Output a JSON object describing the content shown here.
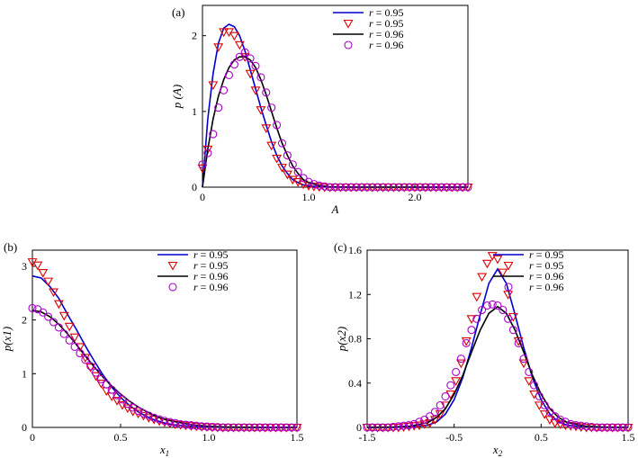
{
  "chart_data": [
    {
      "type": "line",
      "panel_label": "(a)",
      "xlabel": "A",
      "ylabel": "p (A)",
      "xlim": [
        0,
        2.5
      ],
      "ylim": [
        0,
        2.4
      ],
      "xticks": [
        0,
        1.0,
        2.0
      ],
      "xtick_labels": [
        "0",
        "1.0",
        "2.0"
      ],
      "yticks": [
        0,
        1,
        2
      ],
      "ytick_labels": [
        "0",
        "1",
        "2"
      ],
      "legend": [
        "r = 0.95",
        "r = 0.95",
        "r = 0.96",
        "r = 0.96"
      ],
      "legend_position": "top-right",
      "series": [
        {
          "name": "r = 0.95",
          "style": "line",
          "color": "#0000cc",
          "x": [
            0,
            0.05,
            0.1,
            0.15,
            0.2,
            0.25,
            0.3,
            0.35,
            0.4,
            0.45,
            0.5,
            0.55,
            0.6,
            0.65,
            0.7,
            0.75,
            0.8,
            0.85,
            0.9,
            0.95,
            1.0,
            1.1,
            1.2,
            1.4,
            1.6,
            2.0,
            2.5
          ],
          "y": [
            0,
            0.9,
            1.5,
            1.9,
            2.1,
            2.15,
            2.12,
            2.0,
            1.8,
            1.55,
            1.3,
            1.05,
            0.82,
            0.6,
            0.42,
            0.28,
            0.18,
            0.1,
            0.06,
            0.03,
            0.015,
            0.005,
            0,
            0,
            0,
            0,
            0
          ]
        },
        {
          "name": "r = 0.95",
          "style": "marker-triangle",
          "color": "#dd0000",
          "x": [
            0,
            0.05,
            0.1,
            0.15,
            0.2,
            0.25,
            0.3,
            0.35,
            0.4,
            0.45,
            0.5,
            0.55,
            0.6,
            0.65,
            0.7,
            0.75,
            0.8,
            0.85,
            0.9,
            0.95,
            1.0,
            1.05,
            1.1,
            1.15,
            1.2,
            1.25,
            1.3,
            1.35,
            1.4,
            1.45,
            1.5,
            1.55,
            1.6,
            1.65,
            1.7,
            1.75,
            1.8,
            1.85,
            1.9,
            1.95,
            2.0,
            2.05,
            2.1,
            2.15,
            2.2,
            2.25,
            2.3,
            2.35,
            2.4,
            2.45,
            2.5
          ],
          "y": [
            0.25,
            0.5,
            1.35,
            1.85,
            2.05,
            2.05,
            2.0,
            1.88,
            1.72,
            1.5,
            1.28,
            1.02,
            0.78,
            0.55,
            0.38,
            0.26,
            0.17,
            0.1,
            0.07,
            0.04,
            0.02,
            0.01,
            0.005,
            0,
            0,
            0,
            0,
            0,
            0,
            0,
            0,
            0,
            0,
            0,
            0,
            0,
            0,
            0,
            0,
            0,
            0,
            0,
            0,
            0,
            0,
            0,
            0,
            0,
            0,
            0,
            0
          ]
        },
        {
          "name": "r = 0.96",
          "style": "line",
          "color": "#000000",
          "x": [
            0,
            0.05,
            0.1,
            0.15,
            0.2,
            0.25,
            0.3,
            0.35,
            0.4,
            0.45,
            0.5,
            0.55,
            0.6,
            0.65,
            0.7,
            0.75,
            0.8,
            0.85,
            0.9,
            0.95,
            1.0,
            1.1,
            1.2,
            1.4,
            1.6,
            2.0,
            2.5
          ],
          "y": [
            0,
            0.5,
            0.9,
            1.2,
            1.42,
            1.58,
            1.68,
            1.72,
            1.72,
            1.68,
            1.58,
            1.42,
            1.22,
            1.0,
            0.78,
            0.58,
            0.42,
            0.28,
            0.18,
            0.1,
            0.06,
            0.02,
            0.005,
            0,
            0,
            0,
            0
          ]
        },
        {
          "name": "r = 0.96",
          "style": "marker-circle",
          "color": "#aa00cc",
          "x": [
            0,
            0.05,
            0.1,
            0.15,
            0.2,
            0.25,
            0.3,
            0.35,
            0.4,
            0.45,
            0.5,
            0.55,
            0.6,
            0.65,
            0.7,
            0.75,
            0.8,
            0.85,
            0.9,
            0.95,
            1.0,
            1.05,
            1.1,
            1.15,
            1.2,
            1.25,
            1.3,
            1.35,
            1.4,
            1.45,
            1.5,
            1.55,
            1.6,
            1.65,
            1.7,
            1.75,
            1.8,
            1.85,
            1.9,
            1.95,
            2.0,
            2.05,
            2.1,
            2.15,
            2.2,
            2.25,
            2.3,
            2.35,
            2.4,
            2.45,
            2.5
          ],
          "y": [
            0.3,
            0.45,
            0.7,
            1.05,
            1.28,
            1.48,
            1.62,
            1.72,
            1.78,
            1.7,
            1.6,
            1.45,
            1.25,
            1.05,
            0.82,
            0.58,
            0.42,
            0.3,
            0.2,
            0.12,
            0.07,
            0.04,
            0.02,
            0.01,
            0,
            0,
            0,
            0,
            0,
            0,
            0,
            0,
            0,
            0,
            0,
            0,
            0,
            0,
            0,
            0,
            0,
            0,
            0,
            0,
            0,
            0,
            0,
            0,
            0,
            0,
            0
          ]
        }
      ]
    },
    {
      "type": "line",
      "panel_label": "(b)",
      "xlabel": "x1",
      "ylabel": "p(x1)",
      "xlim": [
        0,
        1.5
      ],
      "ylim": [
        0,
        3.3
      ],
      "xticks": [
        0,
        0.5,
        1.0,
        1.5
      ],
      "xtick_labels": [
        "0",
        "0.5",
        "1.0",
        "1.5"
      ],
      "yticks": [
        0,
        1,
        2,
        3
      ],
      "ytick_labels": [
        "0",
        "1",
        "2",
        "3"
      ],
      "legend": [
        "r = 0.95",
        "r = 0.95",
        "r = 0.96",
        "r = 0.96"
      ],
      "legend_position": "top-right",
      "series": [
        {
          "name": "r = 0.95",
          "style": "line",
          "color": "#0000cc",
          "x": [
            0,
            0.05,
            0.1,
            0.15,
            0.2,
            0.25,
            0.3,
            0.35,
            0.4,
            0.45,
            0.5,
            0.55,
            0.6,
            0.65,
            0.7,
            0.75,
            0.8,
            0.9,
            1.0,
            1.1,
            1.2,
            1.3,
            1.4,
            1.5
          ],
          "y": [
            2.82,
            2.78,
            2.62,
            2.4,
            2.1,
            1.82,
            1.52,
            1.24,
            0.98,
            0.75,
            0.56,
            0.41,
            0.29,
            0.2,
            0.13,
            0.08,
            0.05,
            0.02,
            0.007,
            0.002,
            0,
            0,
            0,
            0
          ]
        },
        {
          "name": "r = 0.95",
          "style": "marker-triangle",
          "color": "#dd0000",
          "x": [
            0,
            0.03,
            0.06,
            0.09,
            0.12,
            0.15,
            0.18,
            0.21,
            0.24,
            0.27,
            0.3,
            0.33,
            0.36,
            0.39,
            0.42,
            0.45,
            0.48,
            0.51,
            0.54,
            0.57,
            0.6,
            0.63,
            0.66,
            0.69,
            0.72,
            0.75,
            0.78,
            0.81,
            0.84,
            0.87,
            0.9,
            0.93,
            0.96,
            0.99,
            1.02,
            1.05,
            1.08,
            1.11,
            1.14,
            1.17,
            1.2,
            1.23,
            1.26,
            1.29,
            1.32,
            1.35,
            1.38,
            1.41,
            1.44,
            1.47,
            1.5
          ],
          "y": [
            3.08,
            3.02,
            2.88,
            2.72,
            2.52,
            2.3,
            2.08,
            1.88,
            1.68,
            1.5,
            1.3,
            1.12,
            0.96,
            0.82,
            0.68,
            0.58,
            0.5,
            0.42,
            0.36,
            0.3,
            0.26,
            0.22,
            0.18,
            0.15,
            0.12,
            0.1,
            0.08,
            0.06,
            0.05,
            0.04,
            0.03,
            0.02,
            0.015,
            0.01,
            0.005,
            0,
            0,
            0,
            0,
            0,
            0,
            0,
            0,
            0,
            0,
            0,
            0,
            0,
            0,
            0,
            0
          ]
        },
        {
          "name": "r = 0.96",
          "style": "line",
          "color": "#000000",
          "x": [
            0,
            0.05,
            0.1,
            0.15,
            0.2,
            0.25,
            0.3,
            0.35,
            0.4,
            0.45,
            0.5,
            0.55,
            0.6,
            0.65,
            0.7,
            0.75,
            0.8,
            0.9,
            1.0,
            1.1,
            1.2,
            1.3,
            1.4,
            1.5
          ],
          "y": [
            2.18,
            2.15,
            2.06,
            1.92,
            1.74,
            1.54,
            1.33,
            1.13,
            0.94,
            0.77,
            0.62,
            0.49,
            0.38,
            0.29,
            0.21,
            0.15,
            0.11,
            0.05,
            0.02,
            0.008,
            0.003,
            0,
            0,
            0
          ]
        },
        {
          "name": "r = 0.96",
          "style": "marker-circle",
          "color": "#aa00cc",
          "x": [
            0,
            0.03,
            0.06,
            0.09,
            0.12,
            0.15,
            0.18,
            0.21,
            0.24,
            0.27,
            0.3,
            0.33,
            0.36,
            0.39,
            0.42,
            0.45,
            0.48,
            0.51,
            0.54,
            0.57,
            0.6,
            0.63,
            0.66,
            0.69,
            0.72,
            0.75,
            0.78,
            0.81,
            0.84,
            0.87,
            0.9,
            0.93,
            0.96,
            0.99,
            1.02,
            1.05,
            1.08,
            1.11,
            1.14,
            1.17,
            1.2,
            1.23,
            1.26,
            1.29,
            1.32,
            1.35,
            1.38,
            1.41,
            1.44,
            1.47,
            1.5
          ],
          "y": [
            2.22,
            2.2,
            2.14,
            2.06,
            1.96,
            1.86,
            1.74,
            1.62,
            1.5,
            1.38,
            1.26,
            1.14,
            1.02,
            0.9,
            0.8,
            0.7,
            0.6,
            0.52,
            0.44,
            0.37,
            0.31,
            0.26,
            0.22,
            0.18,
            0.15,
            0.12,
            0.1,
            0.08,
            0.06,
            0.05,
            0.04,
            0.03,
            0.02,
            0.015,
            0.01,
            0.005,
            0,
            0,
            0,
            0,
            0,
            0,
            0,
            0,
            0,
            0,
            0,
            0,
            0,
            0,
            0
          ]
        }
      ]
    },
    {
      "type": "line",
      "panel_label": "(c)",
      "xlabel": "x2",
      "ylabel": "p(x2)",
      "xlim": [
        -1.5,
        1.5
      ],
      "ylim": [
        0,
        1.6
      ],
      "xticks": [
        -1.5,
        -0.5,
        0.5,
        1.5
      ],
      "xtick_labels": [
        "-1.5",
        "-0.5",
        "0.5",
        "1.5"
      ],
      "yticks": [
        0,
        0.4,
        0.8,
        1.2,
        1.6
      ],
      "ytick_labels": [
        "0",
        "0.4",
        "0.8",
        "1.2",
        "1.6"
      ],
      "legend": [
        "r = 0.95",
        "r = 0.95",
        "r = 0.96",
        "r = 0.96"
      ],
      "legend_position": "top-right",
      "series": [
        {
          "name": "r = 0.95",
          "style": "line",
          "color": "#0000cc",
          "x": [
            -1.5,
            -1.2,
            -1.0,
            -0.8,
            -0.7,
            -0.6,
            -0.5,
            -0.4,
            -0.3,
            -0.2,
            -0.1,
            0,
            0.1,
            0.2,
            0.3,
            0.4,
            0.5,
            0.6,
            0.7,
            0.8,
            1.0,
            1.2,
            1.5
          ],
          "y": [
            0,
            0.001,
            0.004,
            0.02,
            0.05,
            0.12,
            0.25,
            0.45,
            0.72,
            1.02,
            1.3,
            1.43,
            1.3,
            1.02,
            0.72,
            0.45,
            0.25,
            0.12,
            0.05,
            0.02,
            0.004,
            0.001,
            0
          ]
        },
        {
          "name": "r = 0.95",
          "style": "marker-triangle",
          "color": "#dd0000",
          "x": [
            -1.5,
            -1.44,
            -1.38,
            -1.32,
            -1.26,
            -1.2,
            -1.14,
            -1.08,
            -1.02,
            -0.96,
            -0.9,
            -0.84,
            -0.78,
            -0.72,
            -0.66,
            -0.6,
            -0.54,
            -0.48,
            -0.42,
            -0.36,
            -0.3,
            -0.24,
            -0.18,
            -0.12,
            -0.06,
            0,
            0.06,
            0.12,
            0.18,
            0.24,
            0.3,
            0.36,
            0.42,
            0.48,
            0.54,
            0.6,
            0.66,
            0.72,
            0.78,
            0.84,
            0.9,
            0.96,
            1.02,
            1.08,
            1.14,
            1.2,
            1.26,
            1.32,
            1.38,
            1.44,
            1.5
          ],
          "y": [
            0,
            0,
            0,
            0,
            0,
            0,
            0,
            0.005,
            0.01,
            0.015,
            0.02,
            0.03,
            0.04,
            0.07,
            0.12,
            0.2,
            0.3,
            0.42,
            0.58,
            0.78,
            0.98,
            1.18,
            1.36,
            1.48,
            1.55,
            1.52,
            1.4,
            1.2,
            1.0,
            0.78,
            0.58,
            0.42,
            0.3,
            0.2,
            0.12,
            0.07,
            0.04,
            0.03,
            0.02,
            0.015,
            0.01,
            0.005,
            0,
            0,
            0,
            0,
            0,
            0,
            0,
            0,
            0
          ]
        },
        {
          "name": "r = 0.96",
          "style": "line",
          "color": "#000000",
          "x": [
            -1.5,
            -1.2,
            -1.0,
            -0.8,
            -0.7,
            -0.6,
            -0.5,
            -0.4,
            -0.3,
            -0.2,
            -0.1,
            0,
            0.1,
            0.2,
            0.3,
            0.4,
            0.5,
            0.6,
            0.7,
            0.8,
            1.0,
            1.2,
            1.5
          ],
          "y": [
            0,
            0.003,
            0.012,
            0.045,
            0.09,
            0.17,
            0.3,
            0.47,
            0.68,
            0.88,
            1.03,
            1.09,
            1.03,
            0.88,
            0.68,
            0.47,
            0.3,
            0.17,
            0.09,
            0.045,
            0.012,
            0.003,
            0
          ]
        },
        {
          "name": "r = 0.96",
          "style": "marker-circle",
          "color": "#aa00cc",
          "x": [
            -1.5,
            -1.44,
            -1.38,
            -1.32,
            -1.26,
            -1.2,
            -1.14,
            -1.08,
            -1.02,
            -0.96,
            -0.9,
            -0.84,
            -0.78,
            -0.72,
            -0.66,
            -0.6,
            -0.54,
            -0.48,
            -0.42,
            -0.36,
            -0.3,
            -0.24,
            -0.18,
            -0.12,
            -0.06,
            0,
            0.06,
            0.12,
            0.18,
            0.24,
            0.3,
            0.36,
            0.42,
            0.48,
            0.54,
            0.6,
            0.66,
            0.72,
            0.78,
            0.84,
            0.9,
            0.96,
            1.02,
            1.08,
            1.14,
            1.2,
            1.26,
            1.32,
            1.38,
            1.44,
            1.5
          ],
          "y": [
            0,
            0,
            0,
            0,
            0,
            0.005,
            0.01,
            0.015,
            0.02,
            0.03,
            0.05,
            0.07,
            0.1,
            0.14,
            0.2,
            0.28,
            0.38,
            0.5,
            0.62,
            0.76,
            0.88,
            0.98,
            1.06,
            1.1,
            1.11,
            1.1,
            1.06,
            0.98,
            0.88,
            0.76,
            0.62,
            0.5,
            0.38,
            0.28,
            0.2,
            0.14,
            0.1,
            0.07,
            0.05,
            0.03,
            0.02,
            0.015,
            0.01,
            0.005,
            0,
            0,
            0,
            0,
            0,
            0,
            0
          ]
        }
      ]
    }
  ]
}
